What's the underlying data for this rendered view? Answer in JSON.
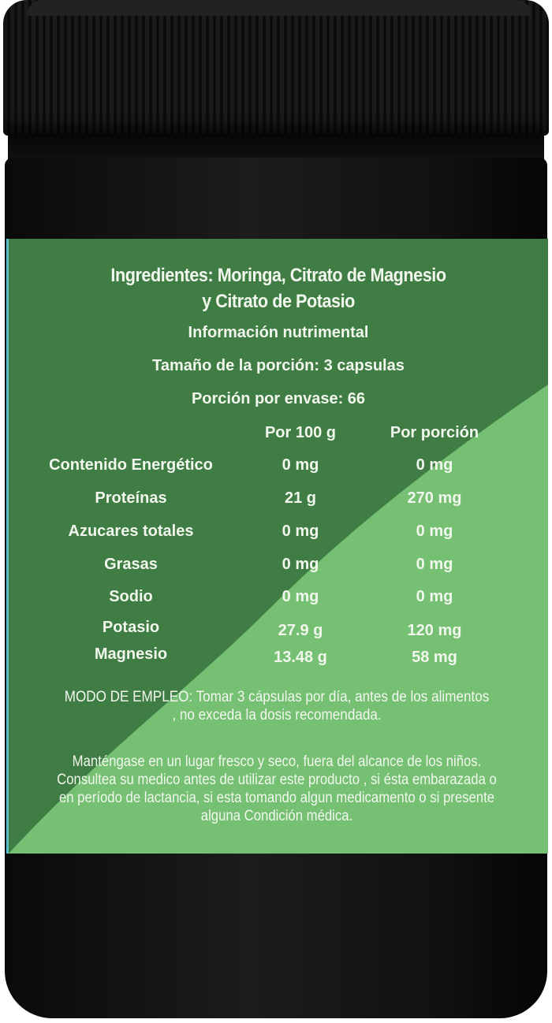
{
  "label": {
    "ingredients": "Ingredientes: Moringa, Citrato de Magnesio y Citrato de Potasio",
    "ingredients_line1": "Ingredientes: Moringa, Citrato de Magnesio",
    "ingredients_line2": "y Citrato de Potasio",
    "nutrition_title": "Información nutrimental",
    "serving_size": "Tamaño de la porción: 3 capsulas",
    "servings_per_container": "Porción por envase: 66",
    "columns": [
      "Por 100 g",
      "Por porción"
    ],
    "rows": [
      {
        "name": "Contenido Energético",
        "per100": "0 mg",
        "perServing": "0 mg"
      },
      {
        "name": "Proteínas",
        "per100": "21 g",
        "perServing": "270 mg"
      },
      {
        "name": "Azucares totales",
        "per100": "0 mg",
        "perServing": "0 mg"
      },
      {
        "name": "Grasas",
        "per100": "0 mg",
        "perServing": "0 mg"
      },
      {
        "name": "Sodio",
        "per100": "0 mg",
        "perServing": "0 mg"
      },
      {
        "name": "Potasio",
        "per100": "27.9 g",
        "perServing": "120 mg"
      },
      {
        "name": "Magnesio",
        "per100": "13.48 g",
        "perServing": "58 mg"
      }
    ],
    "usage": "MODO DE EMPLEO: Tomar 3 cápsulas por día, antes de los alimentos , no exceda la dosis recomendada.",
    "warning": "Manténgase en un lugar fresco y seco, fuera del alcance de los niños. Consultea su medico antes de utilizar este producto , si ésta embarazada o en período de lactancia, si esta tomando algun medicamento o si presente alguna Condición médica.",
    "colors": {
      "dark_green": "#3f7d44",
      "light_green": "#75c073",
      "jar": "#111111"
    }
  }
}
